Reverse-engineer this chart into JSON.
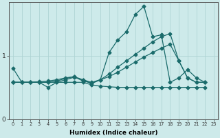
{
  "xlabel": "Humidex (Indice chaleur)",
  "bg_color": "#cdeaea",
  "line_color": "#1a6b6b",
  "grid_color": "#aed4d4",
  "xlim": [
    -0.5,
    23.5
  ],
  "ylim": [
    0,
    1.85
  ],
  "yticks": [
    0,
    1
  ],
  "xticks": [
    0,
    1,
    2,
    3,
    4,
    5,
    6,
    7,
    8,
    9,
    10,
    11,
    12,
    13,
    14,
    15,
    16,
    17,
    18,
    19,
    20,
    21,
    22,
    23
  ],
  "series": [
    {
      "x": [
        0,
        1,
        2,
        3,
        4,
        5,
        6,
        7,
        8,
        9,
        10,
        11,
        12,
        13,
        14,
        15,
        16,
        17,
        18,
        19,
        20,
        21,
        22
      ],
      "y": [
        0.8,
        0.58,
        0.58,
        0.58,
        0.5,
        0.58,
        0.62,
        0.66,
        0.62,
        0.56,
        0.62,
        1.05,
        1.25,
        1.38,
        1.65,
        1.78,
        1.3,
        1.33,
        0.58,
        0.65,
        0.78,
        0.65,
        0.58
      ]
    },
    {
      "x": [
        0,
        1,
        2,
        3,
        4,
        5,
        6,
        7,
        8,
        9,
        10,
        11,
        12,
        13,
        14,
        15,
        16,
        17,
        18,
        19,
        20,
        21,
        22
      ],
      "y": [
        0.58,
        0.58,
        0.58,
        0.58,
        0.58,
        0.6,
        0.64,
        0.67,
        0.62,
        0.58,
        0.62,
        0.67,
        0.74,
        0.82,
        0.9,
        0.98,
        1.05,
        1.12,
        1.18,
        0.92,
        0.65,
        0.58,
        0.58
      ]
    },
    {
      "x": [
        0,
        1,
        2,
        3,
        4,
        5,
        6,
        7,
        8,
        9,
        10,
        11,
        12,
        13,
        14,
        15,
        16,
        17,
        18,
        19,
        20,
        21,
        22
      ],
      "y": [
        0.58,
        0.58,
        0.58,
        0.58,
        0.58,
        0.58,
        0.58,
        0.58,
        0.58,
        0.54,
        0.52,
        0.51,
        0.5,
        0.5,
        0.5,
        0.5,
        0.5,
        0.5,
        0.5,
        0.5,
        0.5,
        0.5,
        0.5
      ]
    },
    {
      "x": [
        0,
        1,
        2,
        3,
        4,
        5,
        6,
        7,
        8,
        9,
        10,
        11,
        12,
        13,
        14,
        15,
        16,
        17,
        18,
        19,
        20,
        21,
        22
      ],
      "y": [
        0.58,
        0.58,
        0.58,
        0.59,
        0.6,
        0.62,
        0.65,
        0.67,
        0.6,
        0.57,
        0.62,
        0.71,
        0.82,
        0.92,
        1.02,
        1.12,
        1.22,
        1.3,
        1.35,
        0.92,
        0.65,
        0.58,
        0.58
      ]
    }
  ],
  "marker": "D",
  "markersize": 2.5,
  "linewidth": 0.9
}
